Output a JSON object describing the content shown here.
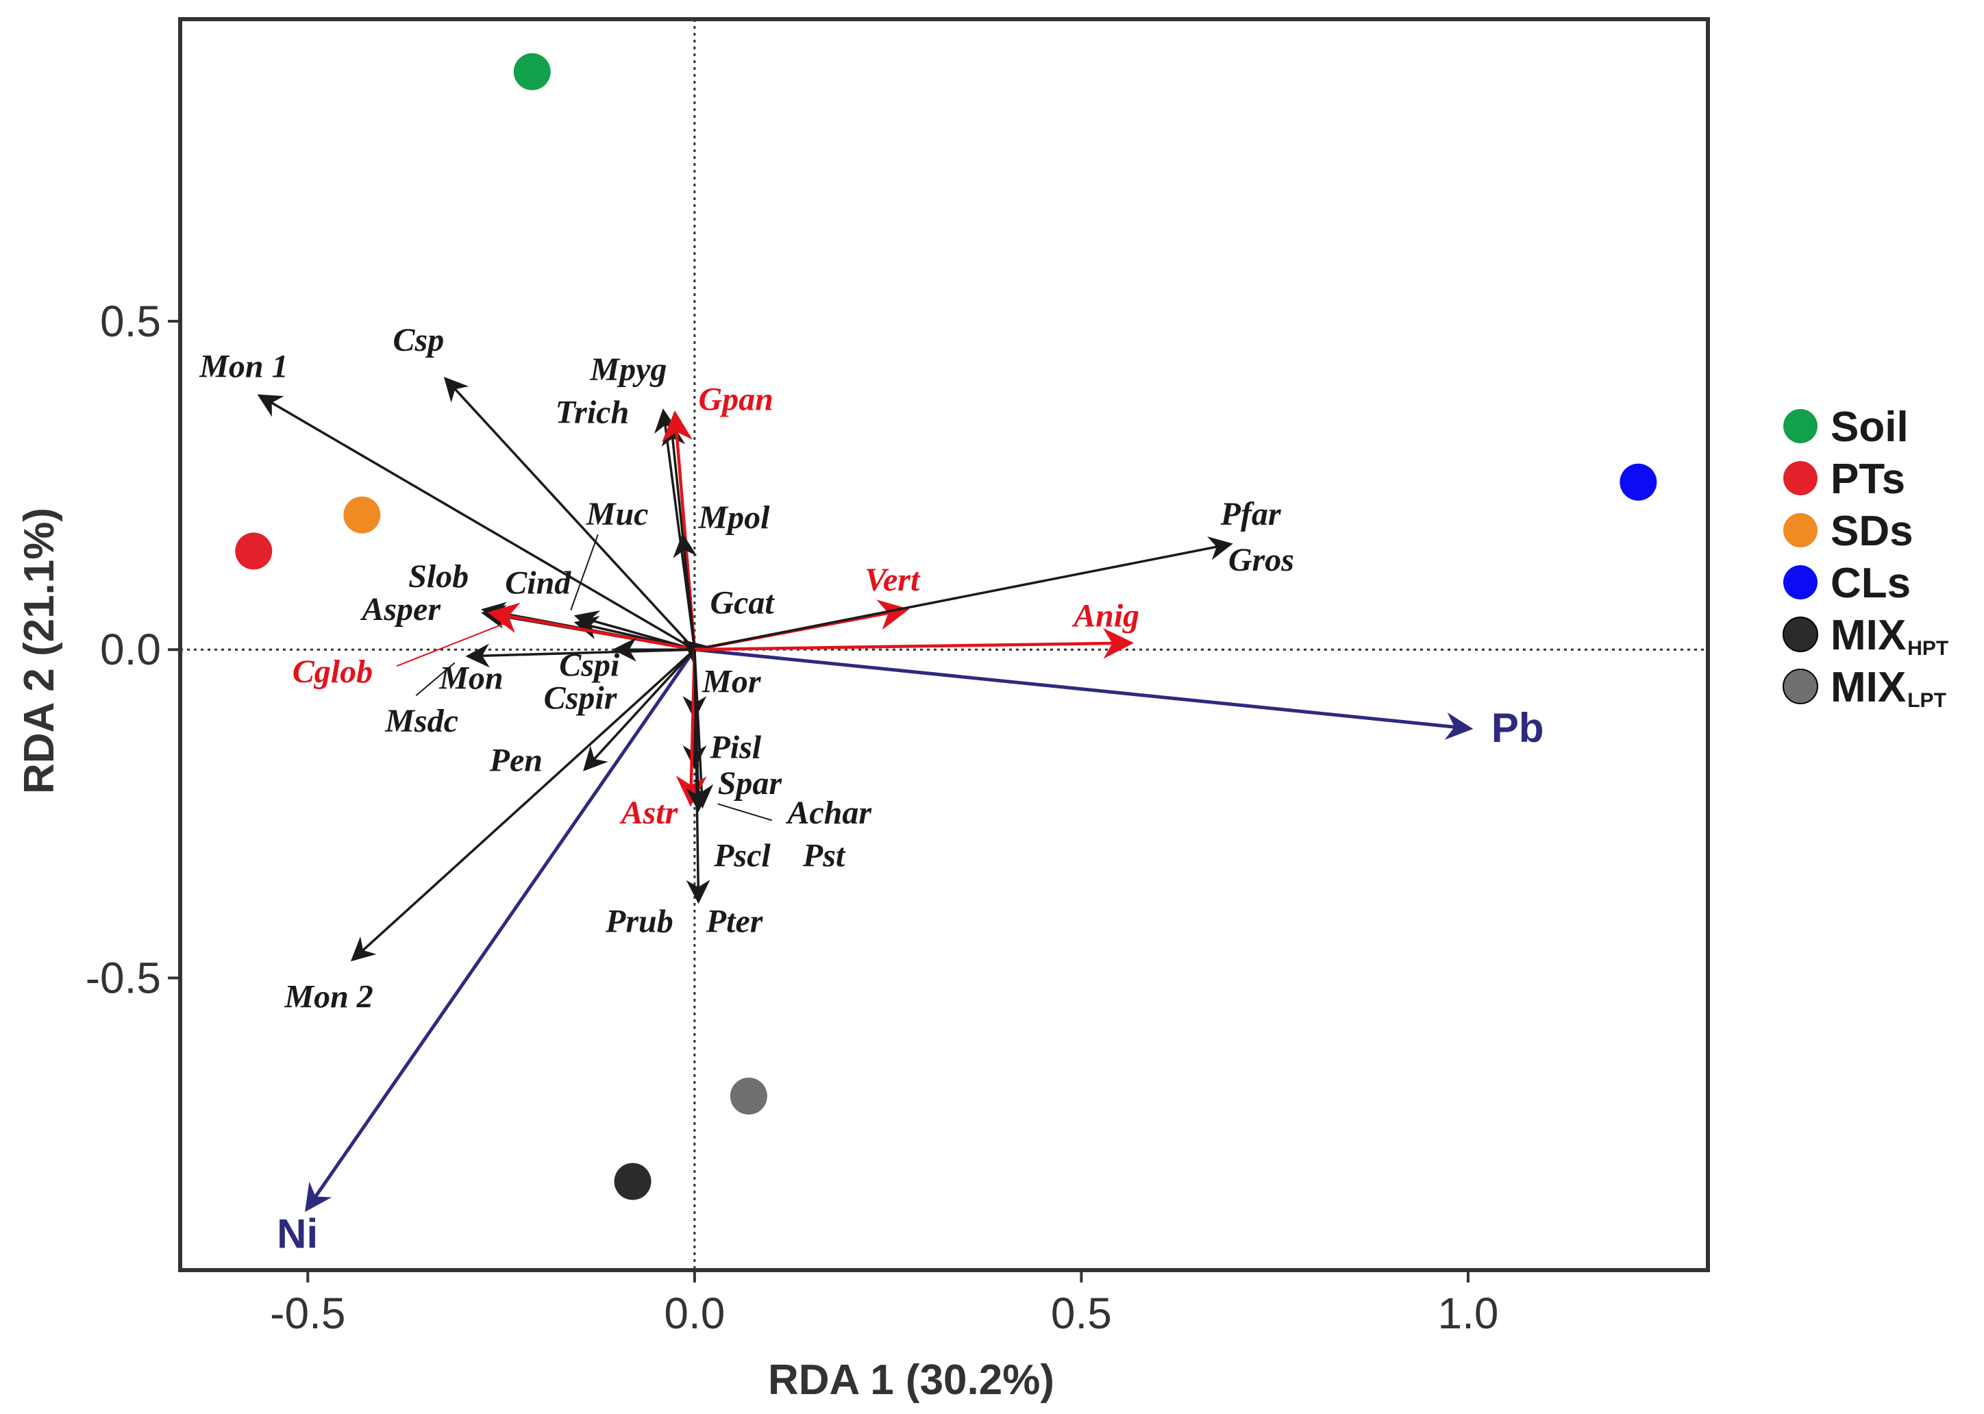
{
  "chart_data": {
    "type": "scatter",
    "subtype": "rda-biplot",
    "xlabel": "RDA 1 (30.2%)",
    "ylabel": "RDA 2 (21.1%)",
    "xlim": [
      -0.665,
      1.31
    ],
    "ylim": [
      -0.945,
      0.96
    ],
    "xticks": [
      -0.5,
      0.0,
      0.5,
      1.0
    ],
    "xtick_labels": [
      "-0.5",
      "0.0",
      "0.5",
      "1.0"
    ],
    "yticks": [
      -0.5,
      0.0,
      0.5
    ],
    "ytick_labels": [
      "-0.5",
      "0.0",
      "0.5"
    ],
    "reference_lines": {
      "x0": true,
      "y0": true,
      "style": "dotted"
    },
    "grid": false,
    "legend_position": "right",
    "colors": {
      "black_arrow": "#1a1a1a",
      "red_arrow": "#e3121b",
      "env_arrow": "#2e2a7d"
    },
    "sites": [
      {
        "name": "Soil",
        "x": -0.21,
        "y": 0.88,
        "color": "#12a04a"
      },
      {
        "name": "PTs",
        "x": -0.57,
        "y": 0.15,
        "color": "#e3212b"
      },
      {
        "name": "SDs",
        "x": -0.43,
        "y": 0.205,
        "color": "#f08a23"
      },
      {
        "name": "CLs",
        "x": 1.22,
        "y": 0.255,
        "color": "#0b0bf5"
      },
      {
        "name": "MIX",
        "sub": "HPT",
        "x": -0.08,
        "y": -0.81,
        "color": "#2b2b2b"
      },
      {
        "name": "MIX",
        "sub": "LPT",
        "x": 0.07,
        "y": -0.68,
        "color": "#707070"
      }
    ],
    "env_vectors": [
      {
        "name": "Pb",
        "x": 1.0,
        "y": -0.12,
        "lx": 1.03,
        "ly": -0.12
      },
      {
        "name": "Ni",
        "x": -0.5,
        "y": -0.85,
        "lx": -0.54,
        "ly": -0.89
      }
    ],
    "species_vectors": [
      {
        "name": "Mon 1",
        "x": -0.56,
        "y": 0.385,
        "color": "black",
        "labels": [
          {
            "text": "Mon 1",
            "x": -0.64,
            "y": 0.415
          }
        ]
      },
      {
        "name": "Csp",
        "x": -0.32,
        "y": 0.41,
        "color": "black",
        "labels": [
          {
            "text": "Csp",
            "x": -0.39,
            "y": 0.455
          }
        ]
      },
      {
        "name": "Mpyg",
        "x": -0.04,
        "y": 0.36,
        "color": "black",
        "labels": [
          {
            "text": "Mpyg",
            "x": -0.135,
            "y": 0.41
          }
        ]
      },
      {
        "name": "Trich",
        "x": -0.03,
        "y": 0.34,
        "color": "black",
        "labels": [
          {
            "text": "Trich",
            "x": -0.18,
            "y": 0.345
          }
        ]
      },
      {
        "name": "Gpan",
        "x": -0.025,
        "y": 0.355,
        "color": "red",
        "labels": [
          {
            "text": "Gpan",
            "x": 0.005,
            "y": 0.365
          }
        ]
      },
      {
        "name": "Mpol",
        "x": -0.015,
        "y": 0.17,
        "color": "black",
        "labels": [
          {
            "text": "Mpol",
            "x": 0.005,
            "y": 0.185
          }
        ]
      },
      {
        "name": "Muc",
        "x": -0.15,
        "y": 0.04,
        "color": "black",
        "labels": [
          {
            "text": "Muc",
            "x": -0.14,
            "y": 0.19
          }
        ]
      },
      {
        "name": "Cind",
        "x": -0.15,
        "y": 0.05,
        "color": "black",
        "labels": [
          {
            "text": "Cind",
            "x": -0.245,
            "y": 0.085
          }
        ]
      },
      {
        "name": "Slob",
        "x": -0.27,
        "y": 0.06,
        "color": "black",
        "labels": [
          {
            "text": "Slob",
            "x": -0.37,
            "y": 0.095
          }
        ]
      },
      {
        "name": "Asper",
        "x": -0.27,
        "y": 0.055,
        "color": "black",
        "labels": [
          {
            "text": "Asper",
            "x": -0.43,
            "y": 0.045
          }
        ]
      },
      {
        "name": "Cglob",
        "x": -0.26,
        "y": 0.055,
        "color": "red",
        "labels": [
          {
            "text": "Cglob",
            "x": -0.52,
            "y": -0.05
          }
        ]
      },
      {
        "name": "Gcat",
        "x": -0.01,
        "y": 0.01,
        "color": "black",
        "labels": [
          {
            "text": "Gcat",
            "x": 0.02,
            "y": 0.055
          }
        ]
      },
      {
        "name": "Vert",
        "x": 0.27,
        "y": 0.06,
        "color": "red",
        "labels": [
          {
            "text": "Vert",
            "x": 0.22,
            "y": 0.09
          }
        ]
      },
      {
        "name": "Pfar",
        "x": 0.69,
        "y": 0.16,
        "color": "black",
        "labels": [
          {
            "text": "Pfar",
            "x": 0.68,
            "y": 0.19
          },
          {
            "text": "Gros",
            "x": 0.69,
            "y": 0.12
          }
        ]
      },
      {
        "name": "Anig",
        "x": 0.56,
        "y": 0.01,
        "color": "red",
        "labels": [
          {
            "text": "Anig",
            "x": 0.49,
            "y": 0.035
          }
        ]
      },
      {
        "name": "Mon",
        "x": -0.29,
        "y": -0.01,
        "color": "black",
        "labels": [
          {
            "text": "Mon",
            "x": -0.33,
            "y": -0.06
          },
          {
            "text": "Msdc",
            "x": -0.4,
            "y": -0.125
          }
        ]
      },
      {
        "name": "Cspi",
        "x": -0.1,
        "y": 0.0,
        "color": "black",
        "labels": [
          {
            "text": "Cspi",
            "x": -0.175,
            "y": -0.04
          },
          {
            "text": "Cspir",
            "x": -0.195,
            "y": -0.09
          }
        ]
      },
      {
        "name": "Pen",
        "x": -0.14,
        "y": -0.18,
        "color": "black",
        "labels": [
          {
            "text": "Pen",
            "x": -0.265,
            "y": -0.185
          }
        ]
      },
      {
        "name": "Mon 2",
        "x": -0.44,
        "y": -0.47,
        "color": "black",
        "labels": [
          {
            "text": "Mon 2",
            "x": -0.53,
            "y": -0.545
          }
        ]
      },
      {
        "name": "Mor",
        "x": 0.0,
        "y": -0.1,
        "color": "black",
        "labels": [
          {
            "text": "Mor",
            "x": 0.01,
            "y": -0.065
          }
        ]
      },
      {
        "name": "Pisl",
        "x": 0.0,
        "y": -0.175,
        "color": "black",
        "labels": [
          {
            "text": "Pisl",
            "x": 0.02,
            "y": -0.165
          }
        ]
      },
      {
        "name": "Spar",
        "x": 0.01,
        "y": -0.235,
        "color": "black",
        "labels": [
          {
            "text": "Spar",
            "x": 0.03,
            "y": -0.22
          }
        ]
      },
      {
        "name": "Astr",
        "x": -0.005,
        "y": -0.23,
        "color": "red",
        "labels": [
          {
            "text": "Astr",
            "x": -0.095,
            "y": -0.265
          }
        ]
      },
      {
        "name": "Achar",
        "x": 0.005,
        "y": -0.24,
        "color": "black",
        "labels": [
          {
            "text": "Achar",
            "x": 0.12,
            "y": -0.265
          },
          {
            "text": "Pst",
            "x": 0.14,
            "y": -0.33
          }
        ]
      },
      {
        "name": "Pscl",
        "x": 0.005,
        "y": -0.24,
        "color": "black",
        "labels": [
          {
            "text": "Pscl",
            "x": 0.025,
            "y": -0.33
          }
        ]
      },
      {
        "name": "Prub",
        "x": 0.005,
        "y": -0.38,
        "color": "black",
        "labels": [
          {
            "text": "Prub",
            "x": -0.115,
            "y": -0.43
          },
          {
            "text": "Pter",
            "x": 0.015,
            "y": -0.43
          }
        ]
      }
    ]
  }
}
